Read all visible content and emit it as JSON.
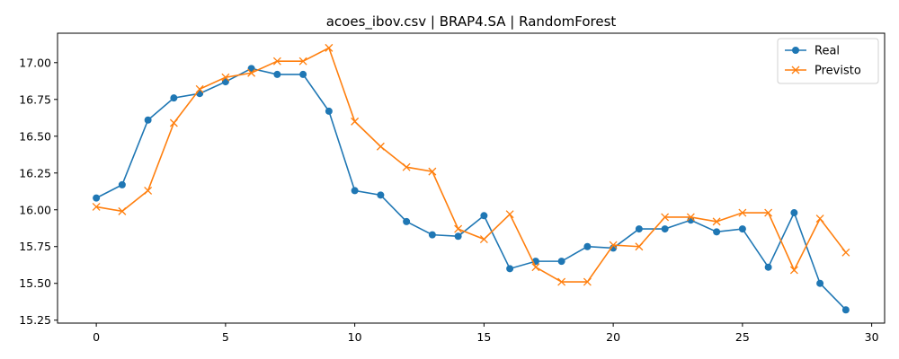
{
  "chart_data": {
    "type": "line",
    "title": "acoes_ibov.csv | BRAP4.SA | RandomForest",
    "xlabel": "",
    "ylabel": "",
    "xlim": [
      -1.5,
      30.5
    ],
    "ylim": [
      15.23,
      17.2
    ],
    "xticks": [
      0,
      5,
      10,
      15,
      20,
      25,
      30
    ],
    "yticks": [
      15.25,
      15.5,
      15.75,
      16.0,
      16.25,
      16.5,
      16.75,
      17.0
    ],
    "grid": false,
    "legend_position": "top-right",
    "x": [
      0,
      1,
      2,
      3,
      4,
      5,
      6,
      7,
      8,
      9,
      10,
      11,
      12,
      13,
      14,
      15,
      16,
      17,
      18,
      19,
      20,
      21,
      22,
      23,
      24,
      25,
      26,
      27,
      28,
      29
    ],
    "series": [
      {
        "name": "Real",
        "color": "#1f77b4",
        "marker": "circle",
        "values": [
          16.08,
          16.17,
          16.61,
          16.76,
          16.79,
          16.87,
          16.96,
          16.92,
          16.92,
          16.67,
          16.13,
          16.1,
          15.92,
          15.83,
          15.82,
          15.96,
          15.6,
          15.65,
          15.65,
          15.75,
          15.74,
          15.87,
          15.87,
          15.93,
          15.85,
          15.87,
          15.61,
          15.98,
          15.5,
          15.32
        ]
      },
      {
        "name": "Previsto",
        "color": "#ff7f0e",
        "marker": "x",
        "values": [
          16.02,
          15.99,
          16.13,
          16.59,
          16.82,
          16.9,
          16.93,
          17.01,
          17.01,
          17.1,
          16.6,
          16.43,
          16.29,
          16.26,
          15.87,
          15.8,
          15.97,
          15.61,
          15.51,
          15.51,
          15.76,
          15.75,
          15.95,
          15.95,
          15.92,
          15.98,
          15.98,
          15.59,
          15.94,
          15.71
        ]
      }
    ]
  }
}
